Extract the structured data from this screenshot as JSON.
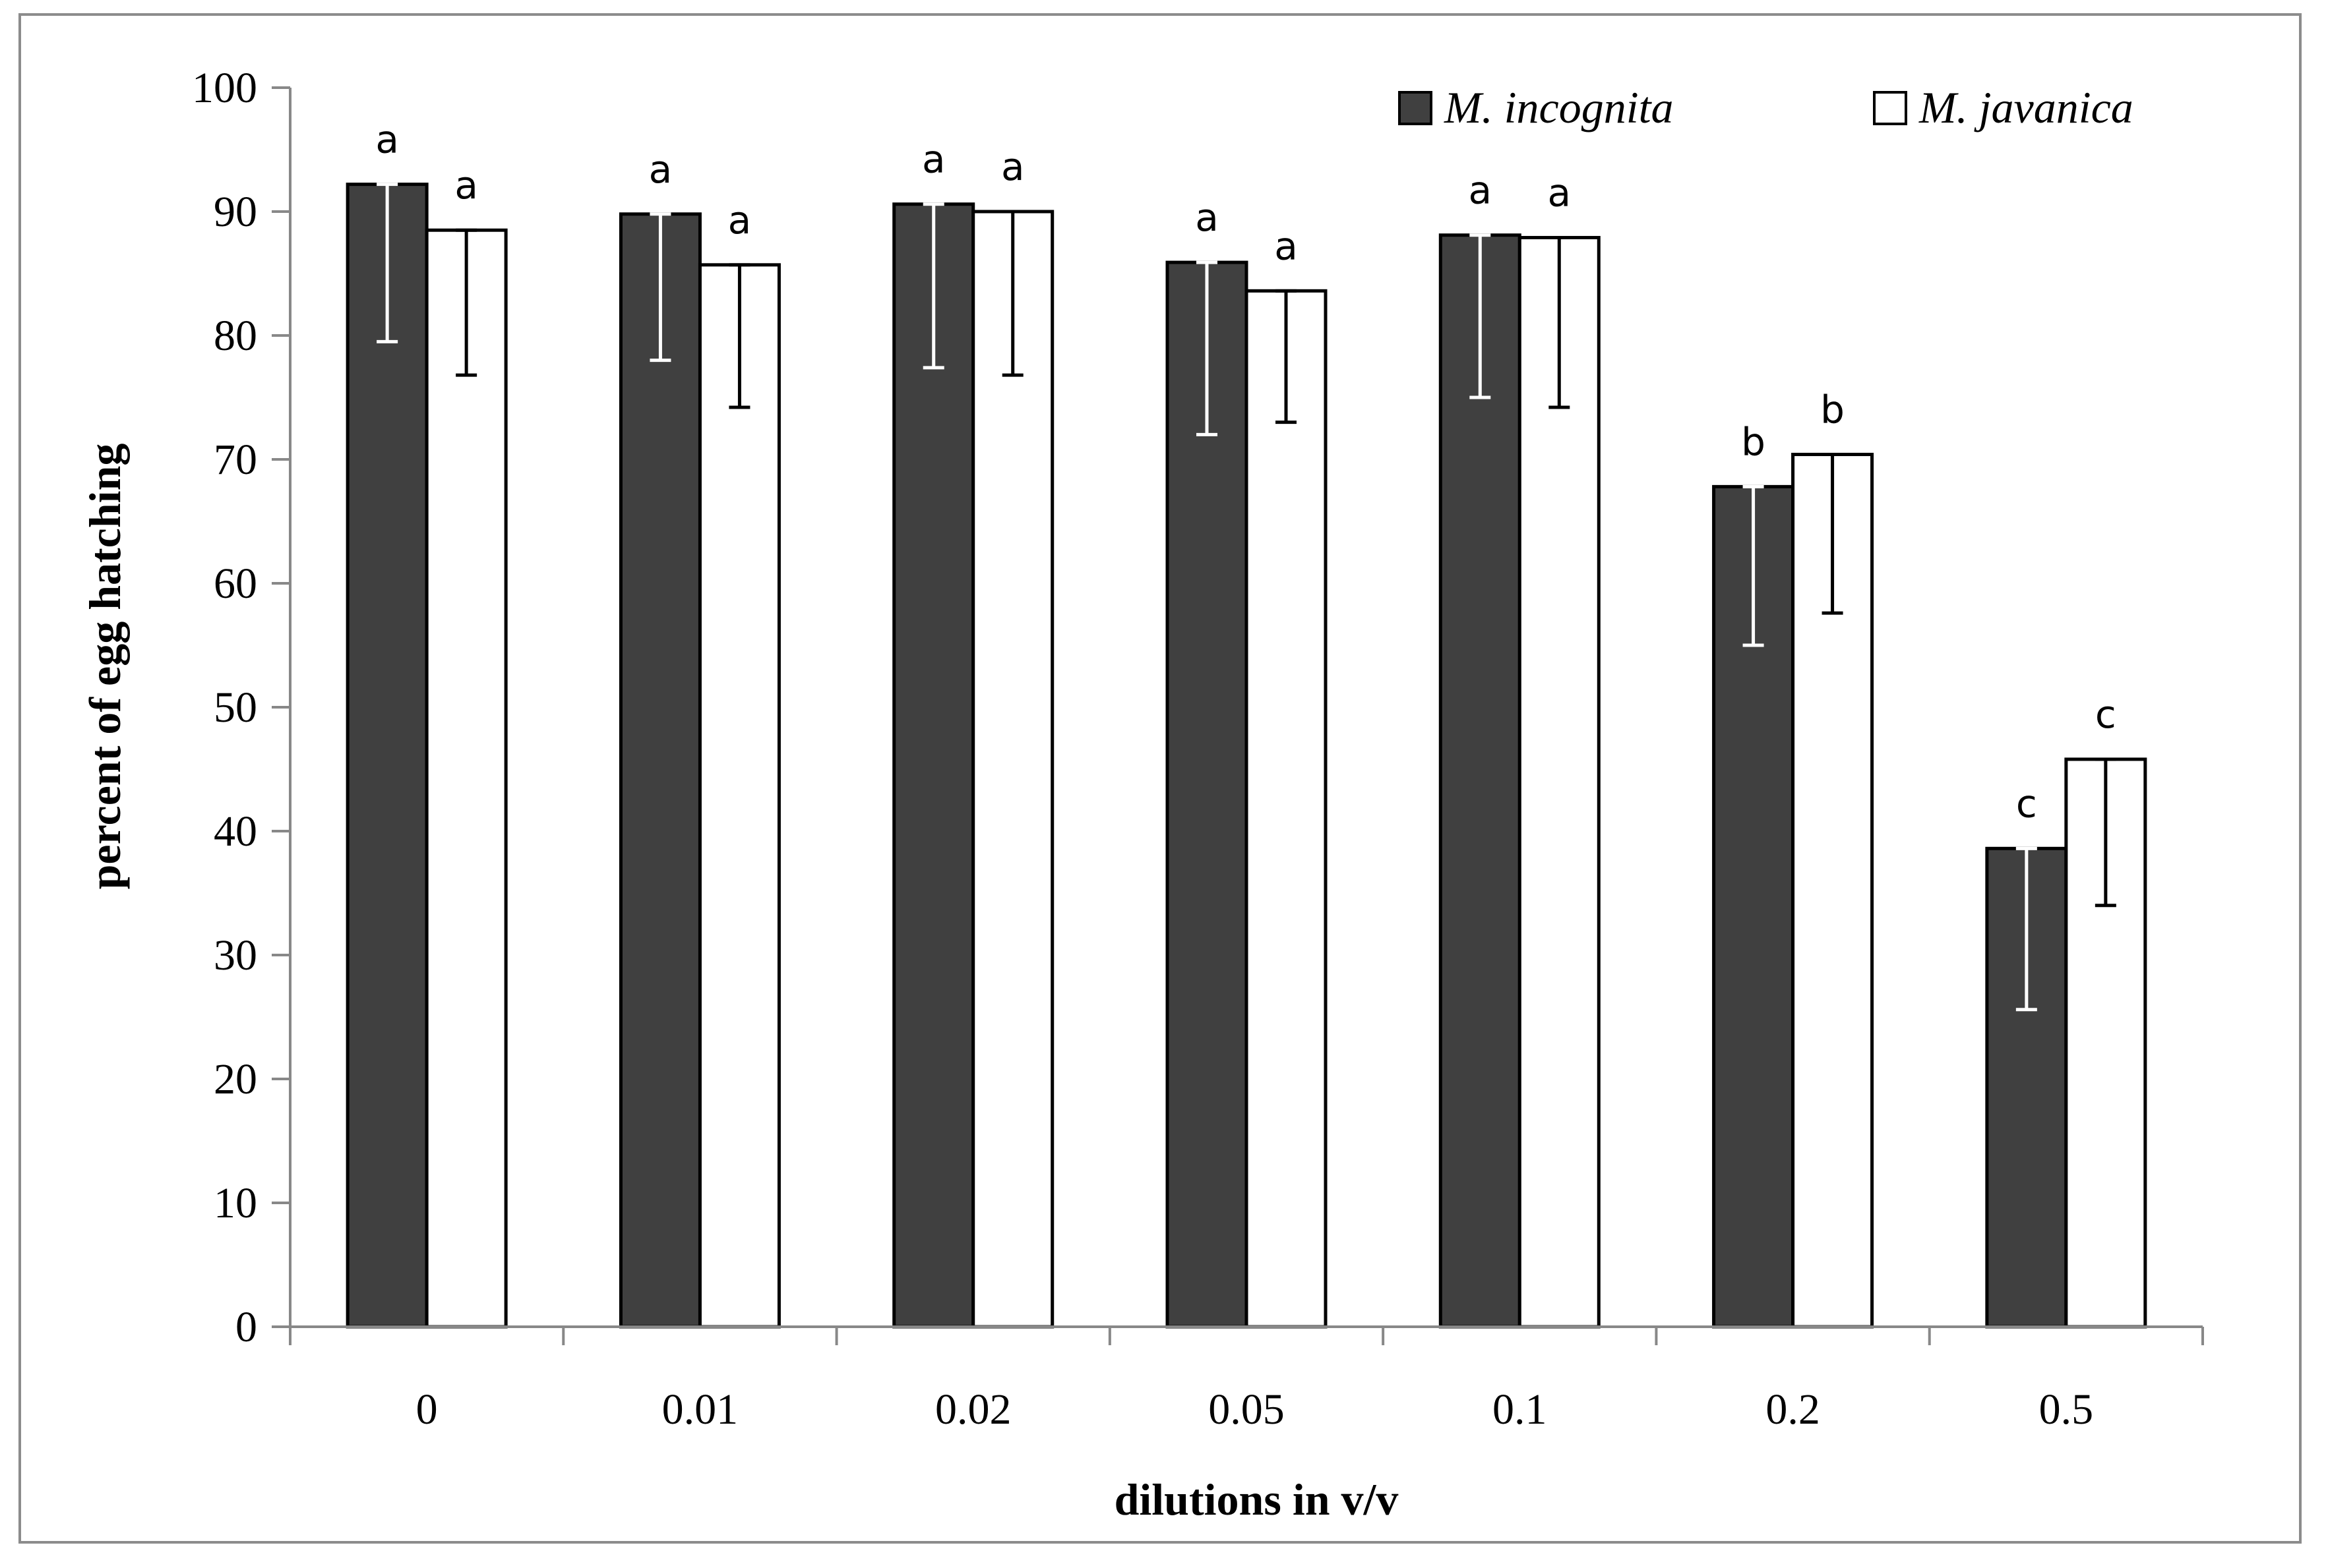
{
  "chart_data": {
    "type": "bar",
    "title": "",
    "xlabel": "dilutions in v/v",
    "ylabel": "percent of egg hatching",
    "ylim": [
      0,
      100
    ],
    "yticks": [
      "0",
      "10",
      "20",
      "30",
      "40",
      "50",
      "60",
      "70",
      "80",
      "90",
      "100"
    ],
    "categories": [
      "0",
      "0.01",
      "0.02",
      "0.05",
      "0.1",
      "0.2",
      "0.5"
    ],
    "grid": false,
    "legend_position": "top-right",
    "series": [
      {
        "name": "M. incognita",
        "color": "#404040",
        "values": [
          92.2,
          89.8,
          90.6,
          85.9,
          88.1,
          67.8,
          38.6
        ],
        "error_low": [
          79.5,
          78.0,
          77.4,
          72.0,
          75.0,
          55.0,
          25.6
        ],
        "error_high": [
          92.2,
          89.8,
          90.6,
          85.9,
          88.1,
          67.8,
          38.6
        ],
        "significance": [
          "a",
          "a",
          "a",
          "a",
          "a",
          "b",
          "c"
        ]
      },
      {
        "name": "M. javanica",
        "color": "#ffffff",
        "values": [
          88.5,
          85.7,
          90.0,
          83.6,
          87.9,
          70.4,
          45.8
        ],
        "error_low": [
          76.8,
          74.2,
          76.8,
          73.0,
          74.2,
          57.6,
          34.0
        ],
        "error_high": [
          88.5,
          85.7,
          90.0,
          83.6,
          87.9,
          70.4,
          45.8
        ],
        "significance": [
          "a",
          "a",
          "a",
          "a",
          "a",
          "b",
          "c"
        ]
      }
    ]
  }
}
